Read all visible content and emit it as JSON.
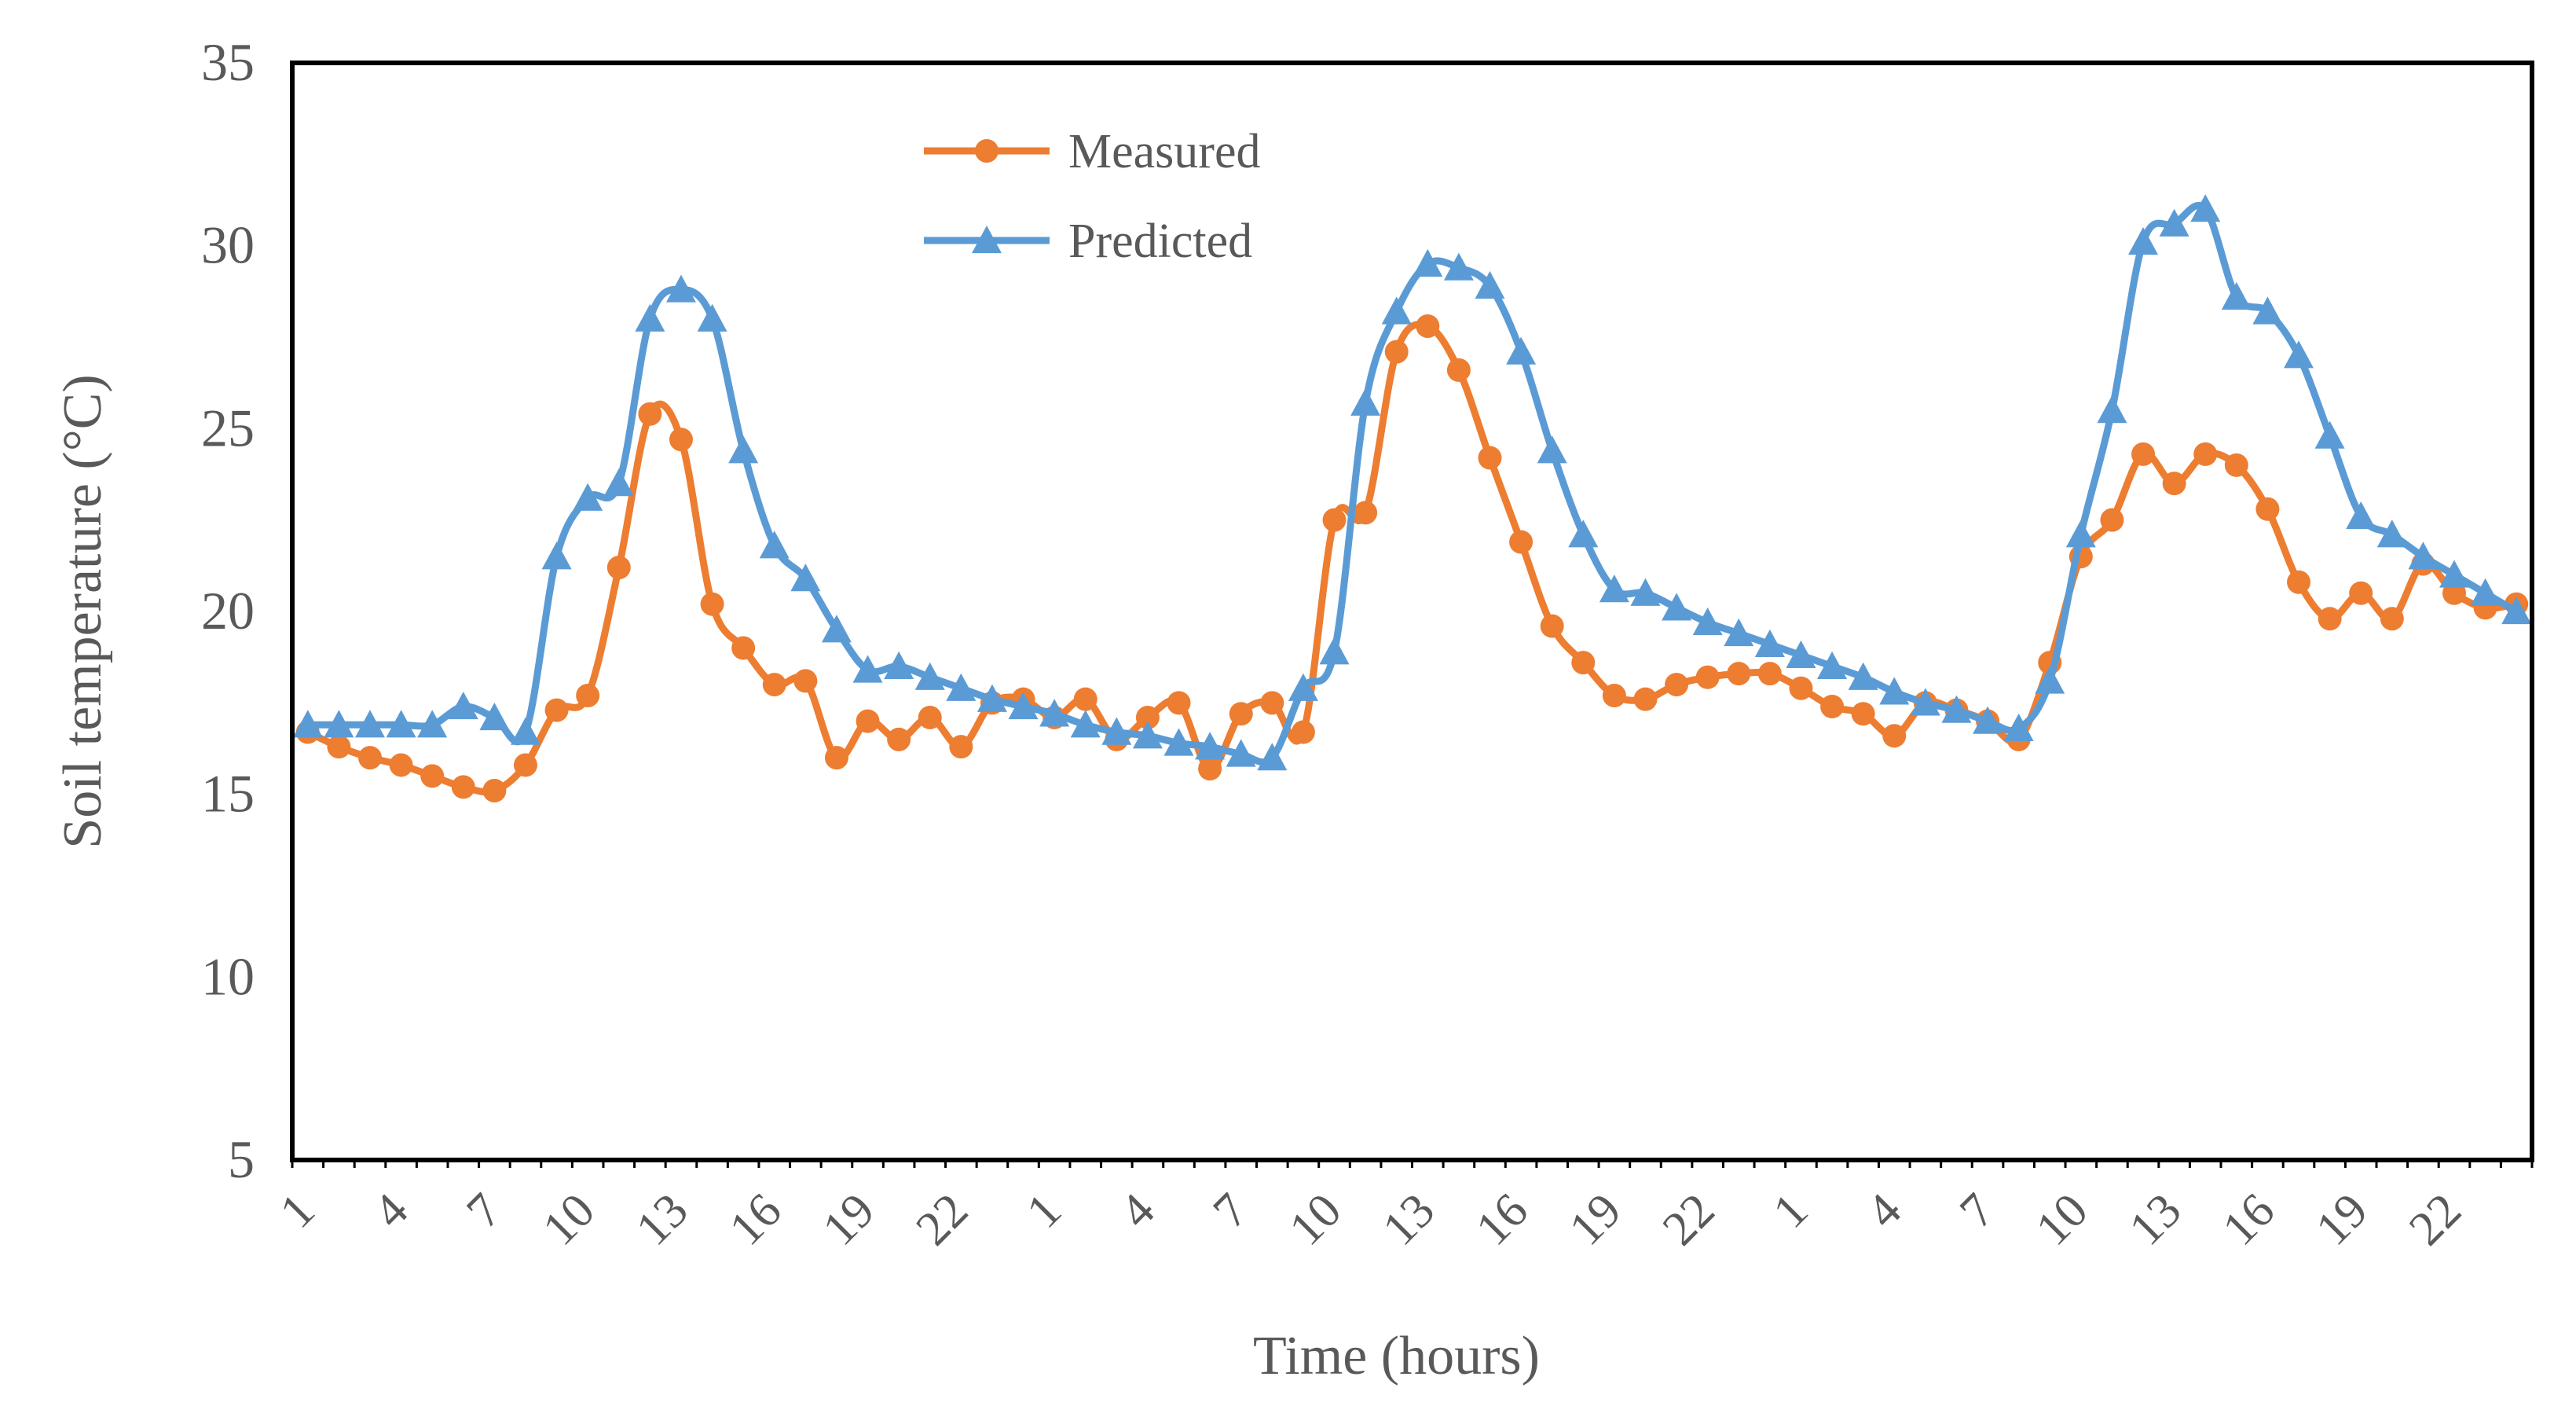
{
  "chart_data": {
    "type": "line",
    "xlabel": "Time (hours)",
    "ylabel": "Soil temperature (°C)",
    "ylim": [
      5,
      35
    ],
    "yticks": [
      5,
      10,
      15,
      20,
      25,
      30,
      35
    ],
    "x_tick_labels": [
      "1",
      "4",
      "7",
      "10",
      "13",
      "16",
      "19",
      "22",
      "1",
      "4",
      "7",
      "10",
      "13",
      "16",
      "19",
      "22",
      "1",
      "4",
      "7",
      "10",
      "13",
      "16",
      "19",
      "22"
    ],
    "x_tick_label_every": 3,
    "n_points": 72,
    "legend_position": "top",
    "series": [
      {
        "name": "Measured",
        "color": "#ED7D31",
        "marker": "circle",
        "values": [
          16.7,
          16.3,
          16.0,
          15.8,
          15.5,
          15.2,
          15.1,
          15.8,
          17.3,
          17.7,
          21.2,
          25.4,
          24.7,
          20.2,
          19.0,
          18.0,
          18.1,
          16.0,
          17.0,
          16.5,
          17.1,
          16.3,
          17.5,
          17.6,
          17.1,
          17.6,
          16.5,
          17.1,
          17.5,
          15.7,
          17.2,
          17.5,
          16.7,
          22.5,
          22.7,
          27.1,
          27.8,
          26.6,
          24.2,
          21.9,
          19.6,
          18.6,
          17.7,
          17.6,
          18.0,
          18.2,
          18.3,
          18.3,
          17.9,
          17.4,
          17.2,
          16.6,
          17.5,
          17.3,
          17.0,
          16.5,
          18.6,
          21.5,
          22.5,
          24.3,
          23.5,
          24.3,
          24.0,
          22.8,
          20.8,
          19.8,
          20.5,
          19.8,
          21.3,
          20.5,
          20.1,
          20.2
        ]
      },
      {
        "name": "Predicted",
        "color": "#5B9BD5",
        "marker": "triangle",
        "values": [
          16.9,
          16.9,
          16.9,
          16.9,
          16.9,
          17.4,
          17.1,
          16.7,
          21.5,
          23.1,
          23.5,
          28.0,
          28.8,
          28.0,
          24.4,
          21.8,
          20.9,
          19.5,
          18.4,
          18.5,
          18.2,
          17.9,
          17.6,
          17.4,
          17.2,
          16.9,
          16.7,
          16.6,
          16.4,
          16.3,
          16.1,
          16.0,
          17.9,
          18.9,
          25.7,
          28.2,
          29.5,
          29.4,
          28.9,
          27.1,
          24.4,
          22.1,
          20.6,
          20.5,
          20.1,
          19.7,
          19.4,
          19.1,
          18.8,
          18.5,
          18.2,
          17.8,
          17.5,
          17.3,
          17.0,
          16.8,
          18.1,
          22.1,
          25.5,
          30.1,
          30.6,
          31.0,
          28.6,
          28.2,
          27.0,
          24.8,
          22.6,
          22.1,
          21.5,
          21.0,
          20.5,
          20.0
        ]
      }
    ]
  }
}
